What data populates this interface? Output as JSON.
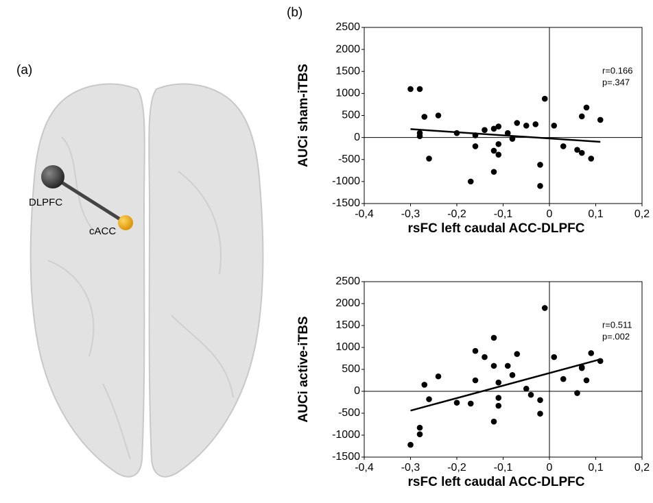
{
  "figure": {
    "panel_a": "(a)",
    "panel_b": "(b)",
    "region_1": "DLPFC",
    "region_2": "cACC"
  },
  "chart_data": [
    {
      "type": "scatter",
      "xlabel": "rsFC left caudal ACC-DLPFC",
      "ylabel": "AUCi sham-iTBS",
      "annotations": [
        "r=0.166",
        "p=.347"
      ],
      "xlim": [
        -0.4,
        0.2
      ],
      "ylim": [
        -1500,
        2500
      ],
      "xticks": [
        {
          "value": -0.4,
          "label": "-0,4"
        },
        {
          "value": -0.3,
          "label": "-0,3"
        },
        {
          "value": -0.2,
          "label": "-0,2"
        },
        {
          "value": -0.1,
          "label": "-0,1"
        },
        0,
        {
          "value": 0.1,
          "label": "0,1"
        },
        {
          "value": 0.2,
          "label": "0,2"
        }
      ],
      "yticks": [
        -1500,
        -1000,
        -500,
        0,
        500,
        1000,
        1500,
        2000,
        2500
      ],
      "color": "#000000",
      "x": [
        -0.3,
        -0.28,
        -0.28,
        -0.28,
        -0.27,
        -0.26,
        -0.24,
        -0.2,
        -0.17,
        -0.16,
        -0.16,
        -0.14,
        -0.12,
        -0.12,
        -0.12,
        -0.11,
        -0.11,
        -0.11,
        -0.09,
        -0.08,
        -0.07,
        -0.05,
        -0.03,
        -0.02,
        -0.02,
        -0.01,
        0.01,
        0.03,
        0.06,
        0.07,
        0.07,
        0.08,
        0.09,
        0.11
      ],
      "values": [
        1100,
        1100,
        100,
        30,
        470,
        -480,
        500,
        100,
        -1000,
        50,
        -200,
        170,
        200,
        -300,
        -780,
        250,
        -150,
        -390,
        100,
        -30,
        330,
        270,
        300,
        -620,
        -1100,
        880,
        270,
        -200,
        -280,
        480,
        -350,
        680,
        -480,
        400
      ],
      "trendline": {
        "x": [
          -0.3,
          0.11
        ],
        "y": [
          190,
          -100
        ]
      }
    },
    {
      "type": "scatter",
      "xlabel": "rsFC left caudal ACC-DLPFC",
      "ylabel": "AUCi active-iTBS",
      "annotations": [
        "r=0.511",
        "p=.002"
      ],
      "xlim": [
        -0.4,
        0.2
      ],
      "ylim": [
        -1500,
        2500
      ],
      "xticks": [
        {
          "value": -0.4,
          "label": "-0,4"
        },
        {
          "value": -0.3,
          "label": "-0,3"
        },
        {
          "value": -0.2,
          "label": "-0,2"
        },
        {
          "value": -0.1,
          "label": "-0,1"
        },
        0,
        {
          "value": 0.1,
          "label": "0,1"
        },
        {
          "value": 0.2,
          "label": "0,2"
        }
      ],
      "yticks": [
        -1500,
        -1000,
        -500,
        0,
        500,
        1000,
        1500,
        2000,
        2500
      ],
      "color": "#000000",
      "x": [
        -0.3,
        -0.28,
        -0.28,
        -0.27,
        -0.26,
        -0.24,
        -0.2,
        -0.17,
        -0.16,
        -0.16,
        -0.14,
        -0.12,
        -0.12,
        -0.12,
        -0.11,
        -0.11,
        -0.11,
        -0.09,
        -0.08,
        -0.07,
        -0.05,
        -0.04,
        -0.02,
        -0.02,
        -0.01,
        0.01,
        0.03,
        0.06,
        0.07,
        0.07,
        0.08,
        0.09,
        0.11
      ],
      "values": [
        -1220,
        -830,
        -980,
        150,
        -180,
        340,
        -260,
        -280,
        920,
        250,
        780,
        1220,
        580,
        -690,
        200,
        -150,
        -330,
        580,
        370,
        850,
        60,
        -80,
        -200,
        -510,
        1900,
        780,
        280,
        -40,
        550,
        530,
        250,
        870,
        690
      ],
      "trendline": {
        "x": [
          -0.3,
          0.11
        ],
        "y": [
          -440,
          730
        ]
      }
    }
  ]
}
